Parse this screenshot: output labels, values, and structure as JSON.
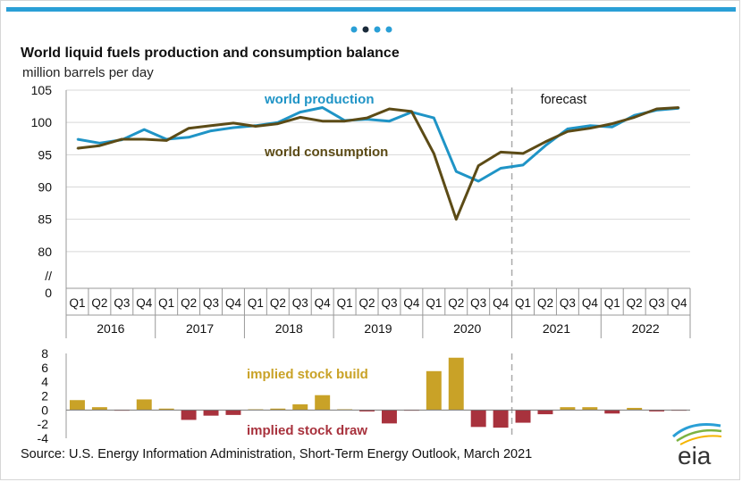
{
  "page": {
    "title": "World liquid fuels production and consumption balance",
    "subtitle": "million barrels per day",
    "source": "Source: U.S. Energy Information Administration, Short-Term Energy Outlook, March 2021",
    "logo_text": "eia",
    "pager_dots": [
      {
        "color": "#2a9fd6",
        "active": false
      },
      {
        "color": "#1a2a3a",
        "active": true
      },
      {
        "color": "#2a9fd6",
        "active": false
      },
      {
        "color": "#2a9fd6",
        "active": false
      }
    ]
  },
  "chart_data": [
    {
      "type": "line",
      "categories": [
        "Q1",
        "Q2",
        "Q3",
        "Q4",
        "Q1",
        "Q2",
        "Q3",
        "Q4",
        "Q1",
        "Q2",
        "Q3",
        "Q4",
        "Q1",
        "Q2",
        "Q3",
        "Q4",
        "Q1",
        "Q2",
        "Q3",
        "Q4",
        "Q1",
        "Q2",
        "Q3",
        "Q4",
        "Q1",
        "Q2",
        "Q3",
        "Q4"
      ],
      "year_labels": [
        "2016",
        "2017",
        "2018",
        "2019",
        "2020",
        "2021",
        "2022"
      ],
      "y_ticks": [
        "105",
        "100",
        "95",
        "90",
        "85",
        "80"
      ],
      "y_zero_label": "0",
      "axis_break_symbol": "//",
      "ylim": [
        75,
        105
      ],
      "forecast_label": "forecast",
      "forecast_start_index": 20,
      "series": [
        {
          "name": "world production",
          "color": "#1f94c6",
          "values": [
            97.4,
            96.8,
            97.3,
            98.9,
            97.4,
            97.7,
            98.7,
            99.2,
            99.5,
            100.0,
            101.6,
            102.3,
            100.3,
            100.5,
            100.2,
            101.6,
            100.7,
            92.4,
            90.9,
            92.9,
            93.4,
            96.4,
            99.0,
            99.5,
            99.3,
            101.1,
            101.9,
            102.2
          ]
        },
        {
          "name": "world consumption",
          "color": "#5c4b16",
          "values": [
            96.0,
            96.4,
            97.4,
            97.4,
            97.2,
            99.1,
            99.5,
            99.9,
            99.4,
            99.8,
            100.8,
            100.2,
            100.2,
            100.7,
            102.1,
            101.7,
            95.2,
            85.0,
            93.3,
            95.4,
            95.2,
            97.0,
            98.6,
            99.1,
            99.8,
            100.8,
            102.1,
            102.3
          ]
        }
      ]
    },
    {
      "type": "bar",
      "categories": [
        "Q1",
        "Q2",
        "Q3",
        "Q4",
        "Q1",
        "Q2",
        "Q3",
        "Q4",
        "Q1",
        "Q2",
        "Q3",
        "Q4",
        "Q1",
        "Q2",
        "Q3",
        "Q4",
        "Q1",
        "Q2",
        "Q3",
        "Q4",
        "Q1",
        "Q2",
        "Q3",
        "Q4",
        "Q1",
        "Q2",
        "Q3",
        "Q4"
      ],
      "y_ticks": [
        "8",
        "6",
        "4",
        "2",
        "0",
        "-2",
        "-4"
      ],
      "ylim": [
        -4,
        8
      ],
      "build_label": "implied stock  build",
      "draw_label": "implied stock draw",
      "build_color": "#c9a227",
      "draw_color": "#a8323d",
      "values": [
        1.4,
        0.4,
        -0.1,
        1.5,
        0.2,
        -1.4,
        -0.8,
        -0.7,
        0.1,
        0.2,
        0.8,
        2.1,
        0.1,
        -0.2,
        -1.9,
        -0.1,
        5.5,
        7.4,
        -2.4,
        -2.5,
        -1.8,
        -0.6,
        0.4,
        0.4,
        -0.5,
        0.3,
        -0.2,
        -0.1
      ]
    }
  ]
}
